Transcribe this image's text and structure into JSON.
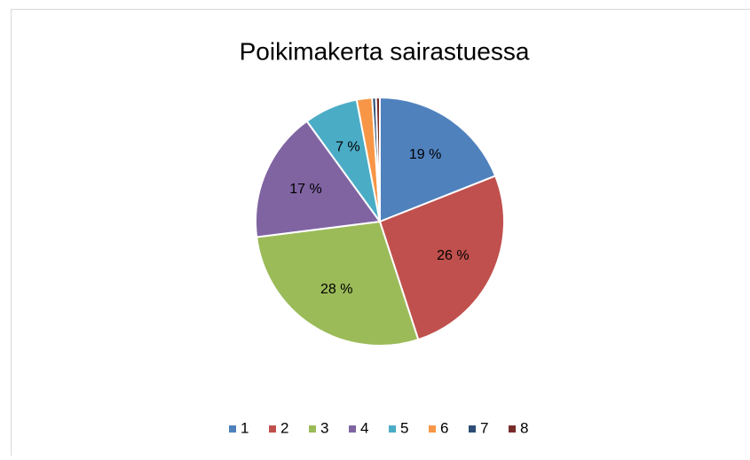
{
  "chart_data": {
    "type": "pie",
    "title": "Poikimakerta sairastuessa",
    "categories": [
      "1",
      "2",
      "3",
      "4",
      "5",
      "6",
      "7",
      "8"
    ],
    "values": [
      19,
      26,
      28,
      17,
      7,
      2,
      0.5,
      0.5
    ],
    "value_labels": [
      "19 %",
      "26 %",
      "28 %",
      "17 %",
      "7 %",
      null,
      null,
      null
    ],
    "colors": [
      "#4f81bd",
      "#c0504d",
      "#9bbb59",
      "#8064a2",
      "#4bacc6",
      "#f79646",
      "#2c4d75",
      "#772c2a"
    ],
    "legend": "bottom"
  }
}
